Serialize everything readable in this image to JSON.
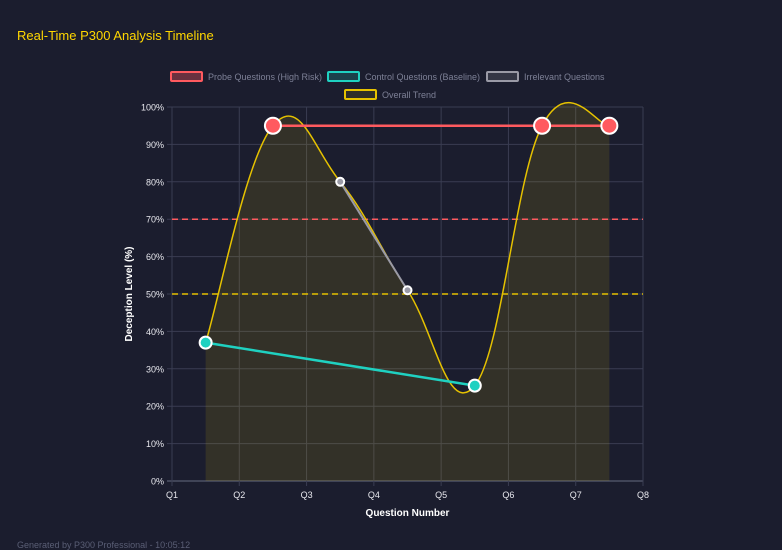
{
  "page": {
    "title": "Real-Time P300 Analysis Timeline",
    "footer": "Generated by P300 Professional - 10:05:12"
  },
  "chart_data": {
    "type": "line",
    "xlabel": "Question Number",
    "ylabel": "Deception Level (%)",
    "x_ticks": [
      "Q1",
      "Q2",
      "Q3",
      "Q4",
      "Q5",
      "Q6",
      "Q7",
      "Q8"
    ],
    "categories": [
      "Q1",
      "Q2",
      "Q3",
      "Q4",
      "Q5",
      "Q6",
      "Q7"
    ],
    "ylim": [
      0,
      100
    ],
    "y_ticks": [
      "0%",
      "10%",
      "20%",
      "30%",
      "40%",
      "50%",
      "60%",
      "70%",
      "80%",
      "90%",
      "100%"
    ],
    "grid": true,
    "legend_placement": "top",
    "series": [
      {
        "name": "Probe Questions (High Risk)",
        "color": "#ff5a5f",
        "points": [
          {
            "category": "Q2",
            "y": 95
          },
          {
            "category": "Q6",
            "y": 95
          },
          {
            "category": "Q7",
            "y": 95
          }
        ]
      },
      {
        "name": "Control Questions (Baseline)",
        "color": "#1fd1c1",
        "points": [
          {
            "category": "Q1",
            "y": 37
          },
          {
            "category": "Q5",
            "y": 25.5
          }
        ]
      },
      {
        "name": "Irrelevant Questions",
        "color": "#9a9aa6",
        "points": [
          {
            "category": "Q3",
            "y": 80
          },
          {
            "category": "Q4",
            "y": 51
          }
        ]
      },
      {
        "name": "Overall Trend",
        "color": "#e6c200",
        "values": [
          37,
          95,
          80,
          51,
          25.5,
          95,
          95
        ]
      }
    ],
    "thresholds": [
      {
        "y": 70,
        "color": "#ff5a5f",
        "style": "dashed"
      },
      {
        "y": 50,
        "color": "#e6c200",
        "style": "dashed"
      }
    ]
  }
}
